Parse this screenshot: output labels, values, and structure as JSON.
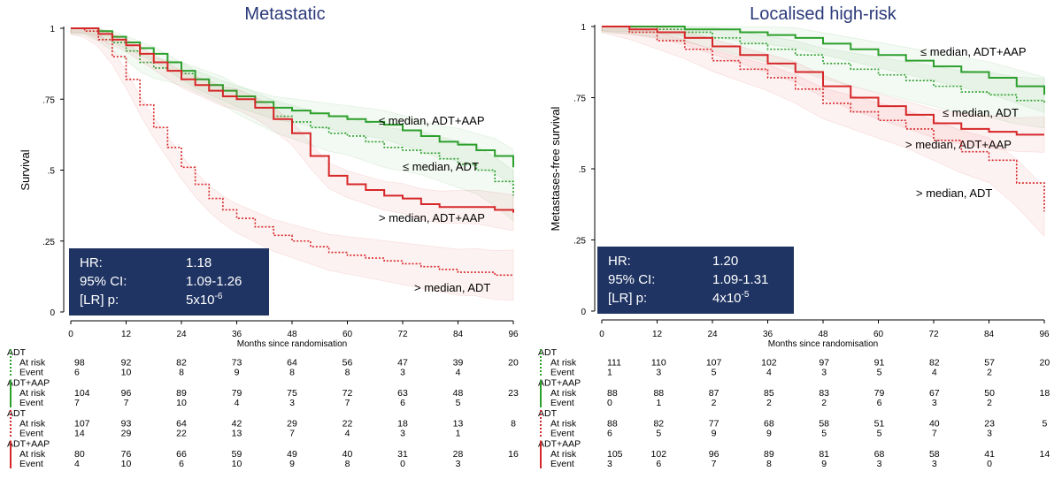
{
  "colors": {
    "green": "#2ca02c",
    "red": "#d62728",
    "box": "#1f3463",
    "title": "#2b3a7a"
  },
  "chart_data": [
    {
      "type": "line",
      "title": "Metastatic",
      "xlabel": "Months since randomisation",
      "ylabel": "Survival",
      "xlim": [
        0,
        96
      ],
      "ylim": [
        0,
        1
      ],
      "xticks": [
        "0",
        "12",
        "24",
        "36",
        "48",
        "60",
        "72",
        "84",
        "96"
      ],
      "yticks": [
        "0",
        ".25",
        ".5",
        ".75",
        "1"
      ],
      "grid": false,
      "series": [
        {
          "name": "≤ median, ADT+AAP",
          "color": "#2ca02c",
          "style": "solid",
          "x": [
            0,
            3,
            6,
            9,
            12,
            15,
            18,
            21,
            24,
            27,
            30,
            33,
            36,
            40,
            44,
            48,
            52,
            56,
            60,
            64,
            68,
            72,
            76,
            80,
            84,
            88,
            92,
            96
          ],
          "y": [
            1,
            1,
            0.99,
            0.97,
            0.95,
            0.93,
            0.91,
            0.88,
            0.85,
            0.82,
            0.8,
            0.78,
            0.76,
            0.74,
            0.72,
            0.71,
            0.7,
            0.69,
            0.68,
            0.67,
            0.66,
            0.64,
            0.62,
            0.6,
            0.59,
            0.57,
            0.55,
            0.51
          ]
        },
        {
          "name": "≤ median, ADT",
          "color": "#2ca02c",
          "style": "dotted",
          "x": [
            0,
            3,
            6,
            9,
            12,
            15,
            18,
            21,
            24,
            27,
            30,
            33,
            36,
            40,
            44,
            48,
            52,
            56,
            60,
            64,
            68,
            72,
            76,
            80,
            84,
            88,
            92,
            96
          ],
          "y": [
            1,
            1,
            0.98,
            0.95,
            0.92,
            0.88,
            0.86,
            0.85,
            0.84,
            0.82,
            0.8,
            0.78,
            0.75,
            0.72,
            0.69,
            0.67,
            0.65,
            0.63,
            0.62,
            0.6,
            0.58,
            0.57,
            0.56,
            0.54,
            0.52,
            0.5,
            0.46,
            0.41
          ]
        },
        {
          "name": "> median, ADT+AAP",
          "color": "#d62728",
          "style": "solid",
          "x": [
            0,
            3,
            6,
            9,
            12,
            15,
            18,
            21,
            24,
            27,
            30,
            33,
            36,
            40,
            44,
            48,
            52,
            56,
            60,
            64,
            68,
            72,
            76,
            80,
            84,
            88,
            92,
            96
          ],
          "y": [
            1,
            1,
            0.98,
            0.96,
            0.94,
            0.91,
            0.88,
            0.85,
            0.82,
            0.8,
            0.78,
            0.76,
            0.75,
            0.72,
            0.68,
            0.63,
            0.55,
            0.48,
            0.45,
            0.43,
            0.41,
            0.4,
            0.38,
            0.37,
            0.37,
            0.37,
            0.36,
            0.35
          ]
        },
        {
          "name": "> median, ADT",
          "color": "#d62728",
          "style": "dotted",
          "x": [
            0,
            3,
            6,
            9,
            12,
            15,
            18,
            21,
            24,
            27,
            30,
            33,
            36,
            40,
            44,
            48,
            52,
            56,
            60,
            64,
            68,
            72,
            76,
            80,
            84,
            88,
            92,
            96
          ],
          "y": [
            1,
            0.99,
            0.96,
            0.9,
            0.82,
            0.73,
            0.65,
            0.58,
            0.51,
            0.45,
            0.4,
            0.36,
            0.33,
            0.3,
            0.27,
            0.25,
            0.23,
            0.21,
            0.2,
            0.19,
            0.18,
            0.17,
            0.16,
            0.15,
            0.14,
            0.14,
            0.13,
            0.13
          ]
        }
      ],
      "box": {
        "rows": [
          {
            "label": "HR:",
            "value": "1.18"
          },
          {
            "label": "95% CI:",
            "value": "1.09-1.26"
          },
          {
            "label": "[LR] p:",
            "value": "5x10",
            "sup": "-6"
          }
        ]
      },
      "risk_table": {
        "groups": [
          {
            "name": "ADT",
            "color": "#2ca02c",
            "style": "dotted",
            "at_risk": [
              "98",
              "92",
              "82",
              "73",
              "64",
              "56",
              "47",
              "39",
              "20"
            ],
            "event": [
              "6",
              "10",
              "8",
              "9",
              "8",
              "8",
              "3",
              "4"
            ]
          },
          {
            "name": "ADT+AAP",
            "color": "#2ca02c",
            "style": "solid",
            "at_risk": [
              "104",
              "96",
              "89",
              "79",
              "75",
              "72",
              "63",
              "48",
              "23"
            ],
            "event": [
              "7",
              "7",
              "10",
              "4",
              "3",
              "7",
              "6",
              "5"
            ]
          },
          {
            "name": "ADT",
            "color": "#d62728",
            "style": "dotted",
            "at_risk": [
              "107",
              "93",
              "64",
              "42",
              "29",
              "22",
              "18",
              "13",
              "8"
            ],
            "event": [
              "14",
              "29",
              "22",
              "13",
              "7",
              "4",
              "3",
              "1"
            ]
          },
          {
            "name": "ADT+AAP",
            "color": "#d62728",
            "style": "solid",
            "at_risk": [
              "80",
              "76",
              "66",
              "59",
              "49",
              "40",
              "31",
              "28",
              "16"
            ],
            "event": [
              "4",
              "10",
              "6",
              "10",
              "9",
              "8",
              "0",
              "3"
            ]
          }
        ],
        "at_risk_label": "At risk",
        "event_label": "Event"
      }
    },
    {
      "type": "line",
      "title": "Localised high-risk",
      "xlabel": "Months since randomisation",
      "ylabel": "Metastases-free survival",
      "xlim": [
        0,
        96
      ],
      "ylim": [
        0,
        1
      ],
      "xticks": [
        "0",
        "12",
        "24",
        "36",
        "48",
        "60",
        "72",
        "84",
        "96"
      ],
      "yticks": [
        "0",
        ".25",
        ".5",
        ".75",
        "1"
      ],
      "grid": false,
      "series": [
        {
          "name": "≤ median, ADT+AAP",
          "color": "#2ca02c",
          "style": "solid",
          "x": [
            0,
            6,
            12,
            18,
            24,
            30,
            36,
            42,
            48,
            54,
            60,
            66,
            72,
            78,
            84,
            90,
            96
          ],
          "y": [
            1,
            1,
            1,
            0.99,
            0.99,
            0.98,
            0.97,
            0.96,
            0.94,
            0.92,
            0.9,
            0.88,
            0.86,
            0.84,
            0.82,
            0.79,
            0.76
          ]
        },
        {
          "name": "≤ median, ADT",
          "color": "#2ca02c",
          "style": "dotted",
          "x": [
            0,
            6,
            12,
            18,
            24,
            30,
            36,
            42,
            48,
            54,
            60,
            66,
            72,
            78,
            84,
            90,
            96
          ],
          "y": [
            1,
            1,
            0.99,
            0.98,
            0.96,
            0.94,
            0.92,
            0.9,
            0.87,
            0.85,
            0.83,
            0.81,
            0.79,
            0.77,
            0.76,
            0.74,
            0.73
          ]
        },
        {
          "name": "> median, ADT+AAP",
          "color": "#d62728",
          "style": "solid",
          "x": [
            0,
            6,
            12,
            18,
            24,
            30,
            36,
            42,
            48,
            54,
            60,
            66,
            72,
            78,
            84,
            90,
            96
          ],
          "y": [
            1,
            0.99,
            0.98,
            0.96,
            0.93,
            0.9,
            0.87,
            0.84,
            0.79,
            0.75,
            0.72,
            0.69,
            0.66,
            0.64,
            0.63,
            0.62,
            0.62
          ]
        },
        {
          "name": "> median, ADT",
          "color": "#d62728",
          "style": "dotted",
          "x": [
            0,
            6,
            12,
            18,
            24,
            30,
            36,
            42,
            48,
            54,
            60,
            66,
            72,
            78,
            84,
            90,
            96
          ],
          "y": [
            1,
            0.98,
            0.95,
            0.92,
            0.88,
            0.85,
            0.82,
            0.78,
            0.73,
            0.7,
            0.67,
            0.64,
            0.6,
            0.56,
            0.53,
            0.45,
            0.35
          ]
        }
      ],
      "box": {
        "rows": [
          {
            "label": "HR:",
            "value": "1.20"
          },
          {
            "label": "95% CI:",
            "value": "1.09-1.31"
          },
          {
            "label": "[LR] p:",
            "value": "4x10",
            "sup": "-5"
          }
        ]
      },
      "risk_table": {
        "groups": [
          {
            "name": "ADT",
            "color": "#2ca02c",
            "style": "dotted",
            "at_risk": [
              "111",
              "110",
              "107",
              "102",
              "97",
              "91",
              "82",
              "57",
              "20"
            ],
            "event": [
              "1",
              "3",
              "5",
              "4",
              "3",
              "5",
              "4",
              "2"
            ]
          },
          {
            "name": "ADT+AAP",
            "color": "#2ca02c",
            "style": "solid",
            "at_risk": [
              "88",
              "88",
              "87",
              "85",
              "83",
              "79",
              "67",
              "50",
              "18"
            ],
            "event": [
              "0",
              "1",
              "2",
              "2",
              "2",
              "6",
              "3",
              "2"
            ]
          },
          {
            "name": "ADT",
            "color": "#d62728",
            "style": "dotted",
            "at_risk": [
              "88",
              "82",
              "77",
              "68",
              "58",
              "51",
              "40",
              "23",
              "5"
            ],
            "event": [
              "6",
              "5",
              "9",
              "9",
              "5",
              "5",
              "7",
              "3"
            ]
          },
          {
            "name": "ADT+AAP",
            "color": "#d62728",
            "style": "solid",
            "at_risk": [
              "105",
              "102",
              "96",
              "89",
              "81",
              "68",
              "58",
              "41",
              "14"
            ],
            "event": [
              "3",
              "6",
              "7",
              "8",
              "9",
              "3",
              "3",
              "0"
            ]
          }
        ],
        "at_risk_label": "At risk",
        "event_label": "Event"
      }
    }
  ]
}
